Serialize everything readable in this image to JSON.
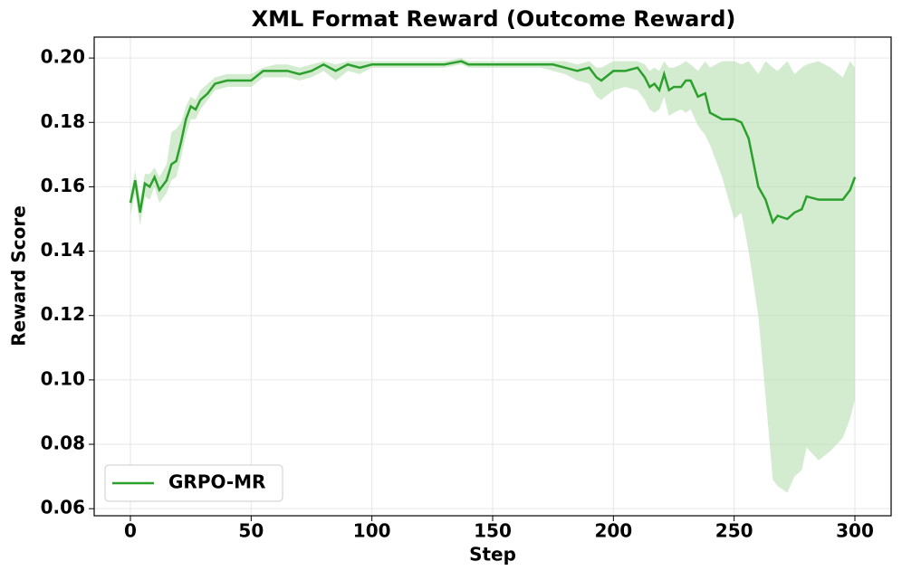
{
  "chart_data": {
    "type": "line",
    "title": "XML Format Reward (Outcome Reward)",
    "x_label": "Step",
    "y_label": "Reward Score",
    "xlim": [
      -15,
      315
    ],
    "xticks": [
      0,
      50,
      100,
      150,
      200,
      250,
      300
    ],
    "ylim": [
      0.0578,
      0.2065
    ],
    "yticks": [
      {
        "value": 0.06,
        "label": "0.06"
      },
      {
        "value": 0.08,
        "label": "0.08"
      },
      {
        "value": 0.1,
        "label": "0.10"
      },
      {
        "value": 0.12,
        "label": "0.12"
      },
      {
        "value": 0.14,
        "label": "0.14"
      },
      {
        "value": 0.16,
        "label": "0.16"
      },
      {
        "value": 0.18,
        "label": "0.18"
      },
      {
        "value": 0.2,
        "label": "0.20"
      }
    ],
    "grid": true,
    "legend": "lower left",
    "series": [
      {
        "name": "GRPO-MR",
        "color": "#2ca02c",
        "band_color": "#b5e0b0",
        "x": [
          0,
          2,
          4,
          6,
          8,
          10,
          12,
          15,
          17,
          19,
          21,
          23,
          25,
          27,
          29,
          32,
          35,
          40,
          45,
          50,
          55,
          60,
          65,
          70,
          75,
          80,
          85,
          90,
          95,
          100,
          110,
          120,
          130,
          137,
          140,
          150,
          160,
          170,
          175,
          180,
          185,
          190,
          193,
          195,
          200,
          205,
          210,
          213,
          215,
          217,
          219,
          221,
          223,
          225,
          228,
          230,
          232,
          235,
          238,
          240,
          245,
          250,
          253,
          256,
          260,
          263,
          266,
          268,
          272,
          275,
          278,
          280,
          285,
          290,
          295,
          298,
          300
        ],
        "values": [
          0.155,
          0.162,
          0.152,
          0.161,
          0.16,
          0.163,
          0.159,
          0.162,
          0.167,
          0.168,
          0.174,
          0.181,
          0.185,
          0.184,
          0.187,
          0.189,
          0.192,
          0.193,
          0.193,
          0.193,
          0.196,
          0.196,
          0.196,
          0.195,
          0.196,
          0.198,
          0.196,
          0.198,
          0.197,
          0.198,
          0.198,
          0.198,
          0.198,
          0.199,
          0.198,
          0.198,
          0.198,
          0.198,
          0.198,
          0.197,
          0.196,
          0.197,
          0.194,
          0.193,
          0.196,
          0.196,
          0.197,
          0.194,
          0.191,
          0.192,
          0.19,
          0.195,
          0.19,
          0.191,
          0.191,
          0.193,
          0.193,
          0.188,
          0.189,
          0.183,
          0.181,
          0.181,
          0.18,
          0.175,
          0.16,
          0.156,
          0.149,
          0.151,
          0.15,
          0.152,
          0.153,
          0.157,
          0.156,
          0.156,
          0.156,
          0.159,
          0.163
        ],
        "lower": [
          0.151,
          0.158,
          0.148,
          0.157,
          0.156,
          0.16,
          0.155,
          0.158,
          0.162,
          0.163,
          0.169,
          0.176,
          0.181,
          0.181,
          0.184,
          0.187,
          0.19,
          0.191,
          0.191,
          0.191,
          0.194,
          0.194,
          0.194,
          0.193,
          0.194,
          0.196,
          0.193,
          0.196,
          0.195,
          0.197,
          0.197,
          0.197,
          0.197,
          0.198,
          0.197,
          0.197,
          0.197,
          0.197,
          0.196,
          0.195,
          0.193,
          0.192,
          0.188,
          0.187,
          0.19,
          0.191,
          0.19,
          0.187,
          0.184,
          0.183,
          0.184,
          0.188,
          0.182,
          0.183,
          0.184,
          0.183,
          0.184,
          0.179,
          0.176,
          0.173,
          0.163,
          0.15,
          0.152,
          0.14,
          0.12,
          0.095,
          0.069,
          0.067,
          0.065,
          0.07,
          0.072,
          0.079,
          0.075,
          0.078,
          0.082,
          0.088,
          0.094
        ],
        "upper": [
          0.158,
          0.165,
          0.156,
          0.164,
          0.164,
          0.166,
          0.163,
          0.167,
          0.177,
          0.178,
          0.18,
          0.185,
          0.188,
          0.187,
          0.19,
          0.192,
          0.194,
          0.195,
          0.195,
          0.195,
          0.197,
          0.198,
          0.198,
          0.197,
          0.198,
          0.199,
          0.198,
          0.199,
          0.199,
          0.199,
          0.199,
          0.199,
          0.199,
          0.2,
          0.199,
          0.199,
          0.199,
          0.199,
          0.199,
          0.199,
          0.198,
          0.199,
          0.197,
          0.197,
          0.199,
          0.199,
          0.199,
          0.198,
          0.196,
          0.197,
          0.196,
          0.199,
          0.197,
          0.197,
          0.198,
          0.199,
          0.198,
          0.196,
          0.199,
          0.197,
          0.199,
          0.199,
          0.198,
          0.199,
          0.195,
          0.199,
          0.197,
          0.196,
          0.199,
          0.195,
          0.197,
          0.198,
          0.199,
          0.197,
          0.194,
          0.199,
          0.197
        ]
      }
    ]
  }
}
